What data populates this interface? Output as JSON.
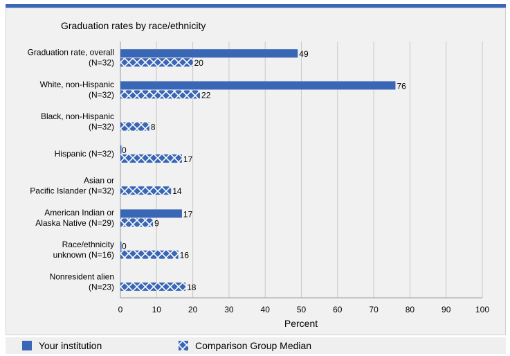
{
  "chart_data": {
    "type": "bar",
    "orientation": "horizontal",
    "title": "Graduation rates by race/ethnicity",
    "xlabel": "Percent",
    "ylabel": "",
    "xlim": [
      0,
      100
    ],
    "xticks": [
      0,
      10,
      20,
      30,
      40,
      50,
      60,
      70,
      80,
      90,
      100
    ],
    "grid": true,
    "legend_position": "bottom",
    "categories": [
      [
        "Graduation rate, overall",
        "(N=32)"
      ],
      [
        "White, non-Hispanic",
        "(N=32)"
      ],
      [
        "Black, non-Hispanic",
        "(N=32)"
      ],
      [
        "Hispanic (N=32)"
      ],
      [
        "Asian or",
        "Pacific Islander (N=32)"
      ],
      [
        "American Indian or",
        "Alaska Native (N=29)"
      ],
      [
        "Race/ethnicity",
        "unknown (N=16)"
      ],
      [
        "Nonresident alien",
        "(N=23)"
      ]
    ],
    "series": [
      {
        "name": "Your institution",
        "color": "#3a66b6",
        "pattern": "solid",
        "values": [
          49,
          76,
          null,
          0,
          null,
          17,
          0,
          null
        ]
      },
      {
        "name": "Comparison Group Median",
        "color": "#3a66b6",
        "pattern": "crosshatch",
        "values": [
          20,
          22,
          8,
          17,
          14,
          9,
          16,
          18
        ]
      }
    ]
  }
}
